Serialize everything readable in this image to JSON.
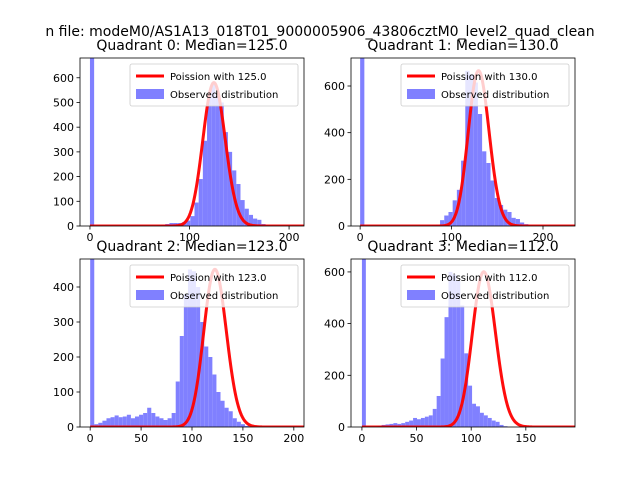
{
  "figure": {
    "suptitle": "n file: modeM0/AS1A13_018T01_9000005906_43806cztM0_level2_quad_clean"
  },
  "chart_data": [
    {
      "type": "bar",
      "title": "Quadrant 0: Median=125.0",
      "xlim": [
        -10,
        215
      ],
      "ylim": [
        0,
        680
      ],
      "xticks": [
        0,
        100,
        200
      ],
      "yticks": [
        0,
        100,
        200,
        300,
        400,
        500,
        600
      ],
      "grid": false,
      "legend_position": "top-right",
      "colors": {
        "hist": "#8080ff",
        "line": "#ff0000"
      },
      "series": [
        {
          "name": "Poission with 125.0",
          "kind": "line",
          "mean": 125.0
        },
        {
          "name": "Observed distribution",
          "kind": "histogram",
          "bin_start": 0,
          "bin_width": 4.2,
          "values": [
            680,
            0,
            0,
            0,
            0,
            0,
            0,
            0,
            0,
            0,
            0,
            0,
            0,
            0,
            0,
            0,
            3,
            5,
            8,
            12,
            12,
            12,
            15,
            22,
            40,
            95,
            190,
            345,
            520,
            580,
            525,
            500,
            380,
            300,
            225,
            170,
            105,
            70,
            45,
            30,
            25,
            8,
            3,
            0,
            0,
            0,
            0,
            0,
            0,
            0
          ]
        }
      ]
    },
    {
      "type": "bar",
      "title": "Quadrant 1: Median=130.0",
      "xlim": [
        -10,
        235
      ],
      "ylim": [
        0,
        720
      ],
      "xticks": [
        0,
        100,
        200
      ],
      "yticks": [
        0,
        200,
        400,
        600
      ],
      "grid": false,
      "legend_position": "top-right",
      "colors": {
        "hist": "#8080ff",
        "line": "#ff0000"
      },
      "series": [
        {
          "name": "Poission with 130.0",
          "kind": "line",
          "mean": 130.0
        },
        {
          "name": "Observed distribution",
          "kind": "histogram",
          "bin_start": 0,
          "bin_width": 4.6,
          "values": [
            720,
            0,
            0,
            0,
            0,
            0,
            0,
            0,
            0,
            0,
            0,
            0,
            0,
            0,
            0,
            0,
            3,
            4,
            6,
            25,
            45,
            60,
            110,
            155,
            280,
            665,
            650,
            615,
            480,
            320,
            270,
            195,
            120,
            90,
            70,
            60,
            35,
            30,
            15,
            8,
            3,
            0,
            0,
            0,
            0,
            0,
            0,
            0,
            0,
            0
          ]
        }
      ]
    },
    {
      "type": "bar",
      "title": "Quadrant 2: Median=123.0",
      "xlim": [
        -10,
        210
      ],
      "ylim": [
        0,
        480
      ],
      "xticks": [
        0,
        50,
        100,
        150,
        200
      ],
      "yticks": [
        0,
        100,
        200,
        300,
        400
      ],
      "grid": false,
      "legend_position": "top-right",
      "colors": {
        "hist": "#8080ff",
        "line": "#ff0000"
      },
      "series": [
        {
          "name": "Poission with 123.0",
          "kind": "line",
          "mean": 123.0
        },
        {
          "name": "Observed distribution",
          "kind": "histogram",
          "bin_start": 0,
          "bin_width": 4.0,
          "values": [
            480,
            8,
            12,
            18,
            25,
            28,
            33,
            28,
            30,
            35,
            25,
            30,
            35,
            40,
            55,
            40,
            30,
            25,
            20,
            25,
            40,
            130,
            260,
            380,
            450,
            445,
            400,
            300,
            230,
            200,
            150,
            100,
            75,
            55,
            45,
            25,
            15,
            8,
            3,
            0,
            0,
            0,
            0,
            0,
            0,
            0,
            0,
            0,
            0,
            0
          ]
        }
      ]
    },
    {
      "type": "bar",
      "title": "Quadrant 3: Median=112.0",
      "xlim": [
        -10,
        195
      ],
      "ylim": [
        0,
        650
      ],
      "xticks": [
        0,
        50,
        100,
        150
      ],
      "yticks": [
        0,
        200,
        400,
        600
      ],
      "grid": false,
      "legend_position": "top-right",
      "colors": {
        "hist": "#8080ff",
        "line": "#ff0000"
      },
      "series": [
        {
          "name": "Poission with 112.0",
          "kind": "line",
          "mean": 112.0
        },
        {
          "name": "Observed distribution",
          "kind": "histogram",
          "bin_start": 0,
          "bin_width": 3.6,
          "values": [
            650,
            0,
            0,
            0,
            5,
            8,
            10,
            12,
            15,
            12,
            15,
            20,
            25,
            35,
            30,
            35,
            40,
            45,
            70,
            120,
            265,
            425,
            600,
            590,
            565,
            470,
            285,
            160,
            90,
            80,
            55,
            45,
            35,
            25,
            20,
            8,
            3,
            0,
            0,
            0,
            0,
            0,
            0,
            0,
            0,
            0,
            0,
            0,
            0,
            0
          ]
        }
      ]
    }
  ]
}
